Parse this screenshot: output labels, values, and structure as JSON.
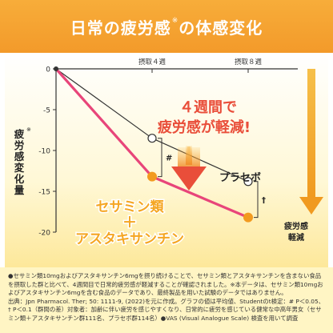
{
  "banner": {
    "title_main": "日常の疲労感",
    "title_note": "※",
    "title_tail": "の体感変化"
  },
  "chart_data": {
    "type": "line",
    "categories": [
      "0",
      "摂取４週",
      "摂取８週"
    ],
    "x": [
      0,
      4,
      8
    ],
    "series": [
      {
        "name": "プラセボ",
        "values": [
          0,
          -8.5,
          -13.8
        ],
        "color": "#333333"
      },
      {
        "name": "セサミン類＋アスタキサンチン",
        "values": [
          0,
          -13.2,
          -18.2
        ],
        "color": "#e8457a"
      }
    ],
    "ylabel": "疲労感変化量",
    "ylabel_note": "※",
    "yticks": [
      0,
      -5,
      -10,
      -15,
      -20
    ],
    "ylim": [
      -20,
      0
    ],
    "grid": false,
    "significance": [
      {
        "label": "#",
        "x": 4
      },
      {
        "label": "†",
        "x": 8
      }
    ],
    "callout_line1": "４週間で",
    "callout_line2": "疲労感が軽減!",
    "placebo_label": "プラセボ",
    "treat_label_1": "セサミン類",
    "treat_label_plus": "＋",
    "treat_label_2": "アスタキサンチン",
    "side_label_1": "疲労感",
    "side_label_2": "軽減",
    "colors": {
      "accent_orange": "#f5a623",
      "pink": "#e8457a",
      "arrow_red": "#e94e3a",
      "marker_fill": "#f29a1f"
    }
  },
  "footnote": {
    "line1": "●セサミン類10mgおよびアスタキサンチン6mgを摂り続けることで、セサミン類とアスタキサンチンを含まない食品を摂取した群と比べて、4週間目で日常的疲労感が軽減することが確認されました。※本データは、セサミン類10mgおよびアスタキサンチン6mgを含む食品のデータであり、最終製品を用いた試験のデータではありません。",
    "line2": "出典：Jpn Pharmacol. Ther; 50: 1111-9, (2022)を元に作成。グラフの値は平均値、Studentのt検定：# P＜0.05、† P＜0.1（群間の差）対象者：加齢に伴い疲労を感じやすくなり、日常的に疲労を感じている健常な中高年男女（セサミン類＋アスタキサンチン群111名、プラセボ群114名）●VAS (Visual Analogue Scale) 検査を用いて調査"
  }
}
